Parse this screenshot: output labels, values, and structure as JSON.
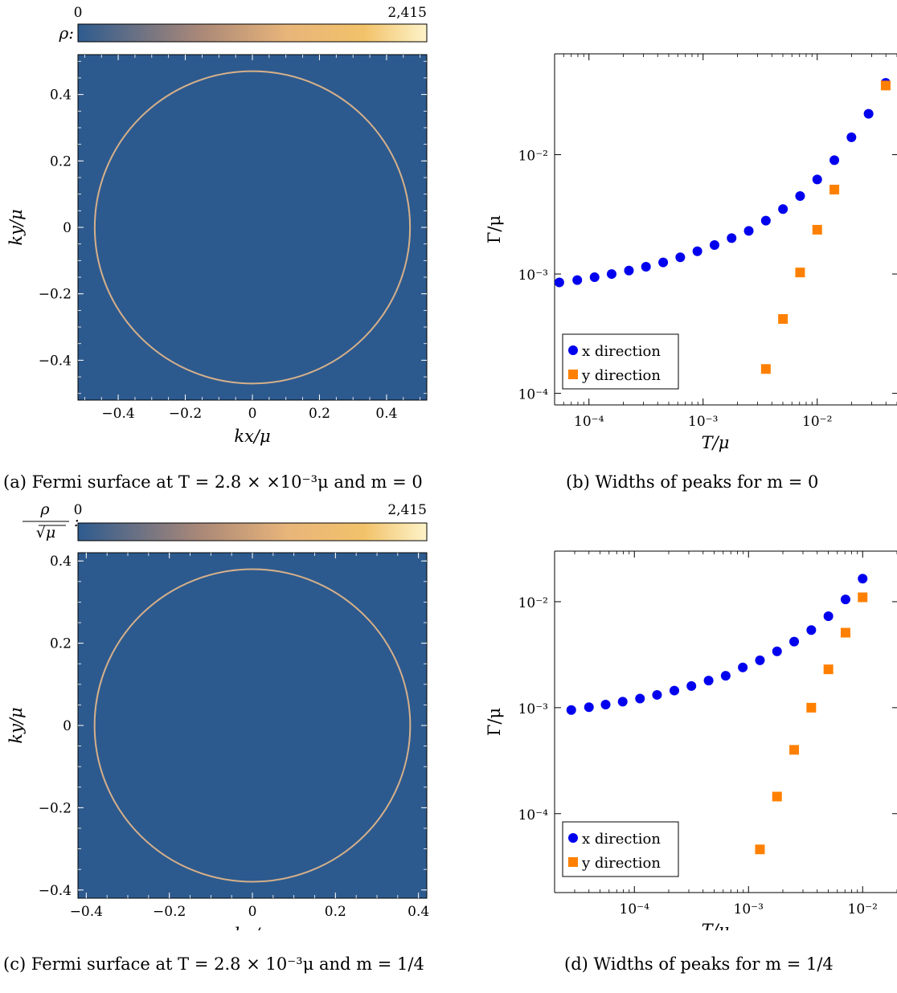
{
  "panels": {
    "a": {
      "caption": {
        "tag": "(a)",
        "text": "Fermi surface at T = 2.8 × ×10⁻³μ and m = 0"
      },
      "colorbar": {
        "label": "ρ:",
        "min": "0",
        "max": "2,415"
      },
      "xlabel": "kx/μ",
      "ylabel": "ky/μ",
      "xticks": [
        "−0.4",
        "−0.2",
        "0",
        "0.2",
        "0.4"
      ],
      "yticks": [
        "0.4",
        "0.2",
        "0",
        "−0.2",
        "−0.4"
      ]
    },
    "b": {
      "caption": {
        "tag": "(b)",
        "text": "Widths of peaks for m = 0"
      },
      "xlabel": "T/μ",
      "ylabel": "Γ/μ",
      "xticks": [
        "10⁻⁴",
        "10⁻³",
        "10⁻²"
      ],
      "yticks": [
        "10⁻²",
        "10⁻³",
        "10⁻⁴"
      ],
      "legend": [
        "x direction",
        "y direction"
      ]
    },
    "c": {
      "caption": {
        "tag": "(c)",
        "text": "Fermi surface at T = 2.8 × 10⁻³μ and m = 1/4"
      },
      "colorbar": {
        "label": "ρ/√μ:",
        "min": "0",
        "max": "2,415"
      },
      "xlabel": "kx/μ",
      "ylabel": "ky/μ",
      "xticks": [
        "−0.4",
        "−0.2",
        "0",
        "0.2",
        "0.4"
      ],
      "yticks": [
        "0.4",
        "0.2",
        "0",
        "−0.2",
        "−0.4"
      ]
    },
    "d": {
      "caption": {
        "tag": "(d)",
        "text": "Widths of peaks for m = 1/4"
      },
      "xlabel": "T/μ",
      "ylabel": "Γ/μ",
      "xticks": [
        "10⁻⁴",
        "10⁻³",
        "10⁻²"
      ],
      "yticks": [
        "10⁻²",
        "10⁻³",
        "10⁻⁴"
      ],
      "legend": [
        "x direction",
        "y direction"
      ]
    }
  },
  "colors": {
    "background_map": "#2d5a8e",
    "ring": "#e8b98a",
    "x_series": "#0000ee",
    "y_series": "#ff8000",
    "colormap": [
      "#2e5b8f",
      "#aa8878",
      "#e8b57a",
      "#f2c26a",
      "#fdf3c9"
    ]
  },
  "chart_data": [
    {
      "id": "a",
      "type": "heatmap",
      "title": "",
      "xlabel": "kx/μ",
      "ylabel": "ky/μ",
      "xlim": [
        -0.52,
        0.52
      ],
      "ylim": [
        -0.52,
        0.52
      ],
      "colorbar": {
        "label": "ρ",
        "range": [
          0,
          2415
        ]
      },
      "feature": {
        "shape": "circle",
        "center": [
          0,
          0
        ],
        "radius": 0.47
      }
    },
    {
      "id": "b",
      "type": "scatter",
      "title": "",
      "xlabel": "T/μ",
      "ylabel": "Γ/μ",
      "xscale": "log",
      "yscale": "log",
      "xlim": [
        5e-05,
        0.05
      ],
      "ylim": [
        8e-05,
        0.07
      ],
      "legend_position": "bottom-left",
      "series": [
        {
          "name": "x direction",
          "marker": "circle",
          "x": [
            5.5e-05,
            7.9e-05,
            0.000112,
            0.000158,
            0.000224,
            0.000316,
            0.000447,
            0.000631,
            0.000891,
            0.001259,
            0.001778,
            0.002512,
            0.003548,
            0.005012,
            0.00708,
            0.01,
            0.01413,
            0.01995,
            0.02818,
            0.0398
          ],
          "y": [
            0.00085,
            0.00089,
            0.00094,
            0.001,
            0.00107,
            0.00115,
            0.00125,
            0.00138,
            0.00155,
            0.00175,
            0.002,
            0.0023,
            0.0028,
            0.0035,
            0.0045,
            0.0062,
            0.009,
            0.014,
            0.022,
            0.04
          ]
        },
        {
          "name": "y direction",
          "marker": "square",
          "x": [
            0.003548,
            0.005012,
            0.00708,
            0.01,
            0.01413,
            0.0398
          ],
          "y": [
            0.00016,
            0.00042,
            0.00103,
            0.00235,
            0.0051,
            0.038
          ]
        }
      ]
    },
    {
      "id": "c",
      "type": "heatmap",
      "title": "",
      "xlabel": "kx/μ",
      "ylabel": "ky/μ",
      "xlim": [
        -0.42,
        0.42
      ],
      "ylim": [
        -0.42,
        0.42
      ],
      "colorbar": {
        "label": "ρ/√μ",
        "range": [
          0,
          2415
        ]
      },
      "feature": {
        "shape": "circle",
        "center": [
          0,
          0
        ],
        "radius": 0.38
      }
    },
    {
      "id": "d",
      "type": "scatter",
      "title": "",
      "xlabel": "T/μ",
      "ylabel": "Γ/μ",
      "xscale": "log",
      "yscale": "log",
      "xlim": [
        2e-05,
        0.02
      ],
      "ylim": [
        1.8e-05,
        0.03
      ],
      "legend_position": "bottom-left",
      "series": [
        {
          "name": "x direction",
          "marker": "circle",
          "x": [
            2.8e-05,
            4e-05,
            5.6e-05,
            7.9e-05,
            0.000112,
            0.000158,
            0.000224,
            0.000316,
            0.000447,
            0.000631,
            0.000891,
            0.001259,
            0.001778,
            0.002512,
            0.003548,
            0.005012,
            0.00708,
            0.01
          ],
          "y": [
            0.00095,
            0.00101,
            0.00107,
            0.00114,
            0.00122,
            0.00132,
            0.00145,
            0.0016,
            0.0018,
            0.002,
            0.0024,
            0.0028,
            0.0034,
            0.0042,
            0.0054,
            0.0073,
            0.0105,
            0.0165
          ]
        },
        {
          "name": "y direction",
          "marker": "square",
          "x": [
            0.001259,
            0.001778,
            0.002512,
            0.003548,
            0.005012,
            0.00708,
            0.01
          ],
          "y": [
            4.6e-05,
            0.000145,
            0.0004,
            0.001,
            0.0023,
            0.0051,
            0.011
          ]
        }
      ]
    }
  ]
}
